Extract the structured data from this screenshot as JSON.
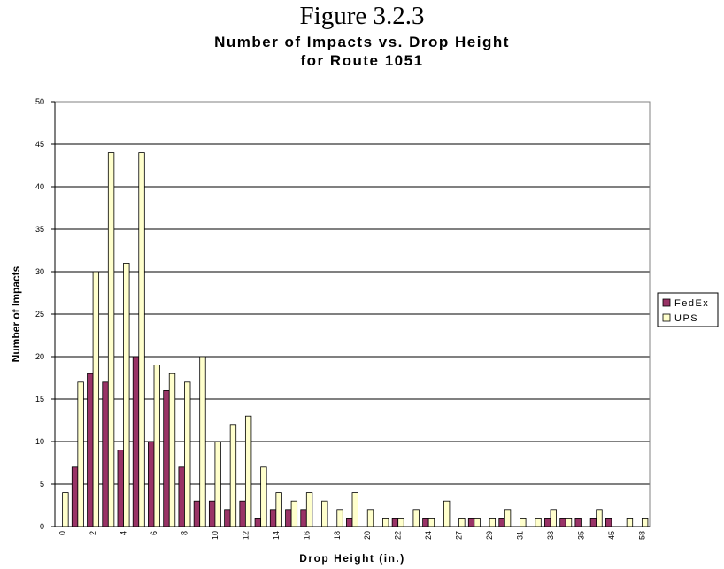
{
  "figure_label": "Figure 3.2.3",
  "chart_data": {
    "type": "bar",
    "title": [
      "Number of Impacts vs. Drop Height",
      "for Route 1051"
    ],
    "xlabel": "Drop Height (in.)",
    "ylabel": "Number of Impacts",
    "ylim": [
      0,
      50
    ],
    "yticks": [
      0,
      5,
      10,
      15,
      20,
      25,
      30,
      35,
      40,
      45,
      50
    ],
    "grid": true,
    "legend_position": "right",
    "categories": [
      "0",
      "1",
      "2",
      "3",
      "4",
      "5",
      "6",
      "7",
      "8",
      "9",
      "10",
      "11",
      "12",
      "13",
      "14",
      "15",
      "16",
      "17",
      "18",
      "19",
      "20",
      "21",
      "22",
      "23",
      "24",
      "25",
      "27",
      "28",
      "29",
      "30",
      "31",
      "32",
      "33",
      "34",
      "35",
      "40",
      "45",
      "50",
      "58"
    ],
    "category_labels_shown": [
      "0",
      "2",
      "4",
      "6",
      "8",
      "10",
      "12",
      "14",
      "16",
      "18",
      "20",
      "22",
      "24",
      "27",
      "29",
      "31",
      "33",
      "35",
      "45",
      "58"
    ],
    "series": [
      {
        "name": "FedEx",
        "color": "#993366",
        "values": [
          0,
          7,
          18,
          17,
          9,
          20,
          10,
          16,
          7,
          3,
          3,
          2,
          3,
          1,
          2,
          2,
          2,
          0,
          0,
          1,
          0,
          0,
          1,
          0,
          1,
          0,
          0,
          1,
          0,
          1,
          0,
          0,
          1,
          1,
          1,
          1,
          1,
          0,
          0
        ]
      },
      {
        "name": "UPS",
        "color": "#ffffcc",
        "values": [
          4,
          17,
          30,
          44,
          31,
          44,
          19,
          18,
          17,
          20,
          10,
          12,
          13,
          7,
          4,
          3,
          4,
          3,
          2,
          4,
          2,
          1,
          1,
          2,
          1,
          3,
          1,
          1,
          1,
          2,
          1,
          1,
          2,
          1,
          0,
          2,
          0,
          1,
          1
        ]
      }
    ]
  }
}
